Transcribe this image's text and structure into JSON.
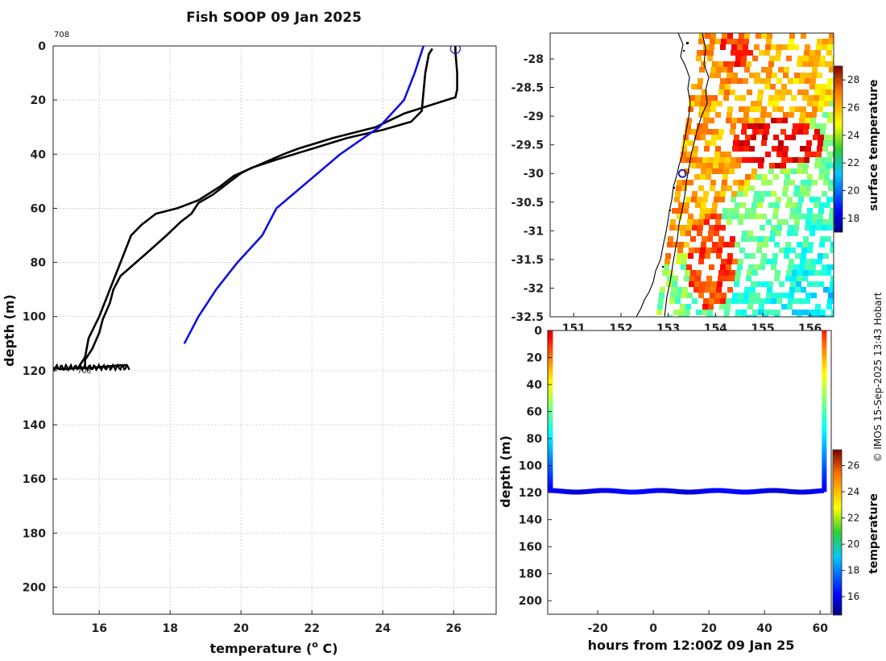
{
  "title": "Fish SOOP 09 Jan 2025",
  "profile_id_top": "708",
  "profile_id_bottom": "708",
  "credit": "© IMOS 15-Sep-2025 13:43 Hobart",
  "colors": {
    "measured": "#000000",
    "climatology": "#1111dd",
    "marker": "#2222aa"
  },
  "chart_data": [
    {
      "name": "temperature-depth-profile",
      "type": "line",
      "xlabel": "temperature (",
      "xlabel_sup": "o",
      "xlabel_tail": " C)",
      "ylabel": "depth (m)",
      "xlim": [
        14.7,
        27.2
      ],
      "ylim": [
        0,
        210
      ],
      "xticks": [
        16,
        18,
        20,
        22,
        24,
        26
      ],
      "yticks": [
        0,
        20,
        40,
        60,
        80,
        100,
        120,
        140,
        160,
        180,
        200
      ],
      "grid": true,
      "series": [
        {
          "name": "profile-a",
          "color": "#000000",
          "x": [
            26.05,
            26.05,
            26.1,
            26.1,
            26.05,
            25.8,
            24.6,
            23.8,
            22.6,
            21.6,
            21.2,
            20.5,
            19.8,
            19.4,
            18.8,
            18.2,
            17.6,
            17.2,
            16.9,
            16.6,
            16.3,
            16.0,
            15.7,
            15.6,
            15.4,
            15.7,
            16.2,
            16.6,
            16.8
          ],
          "y": [
            0,
            2,
            10,
            16,
            19,
            20,
            25,
            30,
            34,
            38,
            40,
            44,
            48,
            52,
            57,
            60,
            62,
            66,
            70,
            80,
            90,
            100,
            108,
            115,
            119,
            119,
            118.5,
            118,
            118
          ]
        },
        {
          "name": "profile-b",
          "color": "#000000",
          "x": [
            25.4,
            25.3,
            25.2,
            25.1,
            24.8,
            24.0,
            23.0,
            22.0,
            21.0,
            20.3,
            20.0,
            19.7,
            19.2,
            18.8,
            18.6,
            18.3,
            17.9,
            17.3,
            16.6,
            16.4,
            16.3,
            16.1,
            16.0,
            15.8,
            15.6,
            15.6,
            15.4,
            15.0,
            14.7
          ],
          "y": [
            1,
            3,
            10,
            24,
            28,
            31,
            34,
            38,
            42,
            45,
            47,
            50,
            55,
            58,
            62,
            65,
            70,
            77,
            85,
            90,
            95,
            101,
            106,
            112,
            116,
            119,
            119,
            119.5,
            119
          ]
        },
        {
          "name": "climatology",
          "color": "#1111dd",
          "x": [
            25.15,
            24.9,
            24.6,
            23.9,
            22.8,
            21.9,
            21.0,
            20.6,
            19.9,
            19.3,
            18.8,
            18.4
          ],
          "y": [
            0,
            10,
            20,
            30,
            40,
            50,
            60,
            70,
            80,
            90,
            100,
            110
          ]
        }
      ],
      "markers": [
        {
          "name": "surface-marker",
          "x": 26.05,
          "y": 1
        }
      ]
    },
    {
      "name": "sea-surface-temperature-map",
      "type": "heatmap",
      "xticks_visible_labels": [
        "151",
        "152",
        "153",
        "154",
        "155",
        "156"
      ],
      "xlim": [
        150.5,
        156.5
      ],
      "ylim": [
        -32.5,
        -27.55
      ],
      "yticks": [
        "-28",
        "-28.5",
        "-29",
        "-29.5",
        "-30",
        "-30.5",
        "-31",
        "-31.5",
        "-32",
        "-32.5"
      ],
      "colorbar_label": "surface temperature",
      "colorbar_ticks": [
        "18",
        "20",
        "22",
        "24",
        "26",
        "28"
      ],
      "colorbar_range": [
        17,
        29
      ],
      "station_marker": {
        "lon": 153.3,
        "lat": -30.0
      }
    },
    {
      "name": "depth-time-section",
      "type": "scatter",
      "xlabel": "hours from 12:00Z 09 Jan 25",
      "ylabel": "depth (m)",
      "xlim": [
        -38,
        64
      ],
      "ylim": [
        0,
        210
      ],
      "xticks": [
        "-20",
        "0",
        "20",
        "40",
        "60"
      ],
      "yticks": [
        "0",
        "20",
        "40",
        "60",
        "80",
        "100",
        "120",
        "140",
        "160",
        "180",
        "200"
      ],
      "colorbar_label": "temperature",
      "colorbar_ticks": [
        "16",
        "18",
        "20",
        "22",
        "24",
        "26"
      ],
      "colorbar_range": [
        14.6,
        27.2
      ],
      "casts": [
        {
          "hour": -37,
          "top_temp": 26.2
        },
        {
          "hour": 61.5,
          "top_temp": 25.4
        }
      ],
      "bottom_depth": 119,
      "bottom_temp": 16.0
    }
  ]
}
